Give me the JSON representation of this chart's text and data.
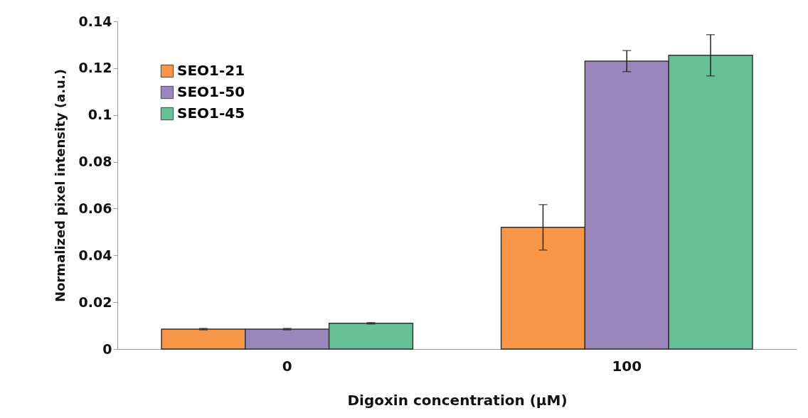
{
  "chart_data": {
    "type": "bar",
    "xlabel": "Digoxin concentration (μM)",
    "ylabel": "Normalized pixel intensity (a.u.)",
    "categories": [
      "0",
      "100"
    ],
    "ylim": [
      0,
      0.14
    ],
    "yticks": [
      0,
      0.02,
      0.04,
      0.06,
      0.08,
      0.1,
      0.12,
      0.14
    ],
    "grid": false,
    "legend": "top left",
    "series": [
      {
        "name": "SEO1-21",
        "color": "#f79646",
        "values": [
          0.0085,
          0.052
        ],
        "errors": [
          0.0003,
          0.0097
        ]
      },
      {
        "name": "SEO1-50",
        "color": "#9b85bd",
        "values": [
          0.0085,
          0.123
        ],
        "errors": [
          0.0003,
          0.0045
        ]
      },
      {
        "name": "SEO1-45",
        "color": "#66c194",
        "values": [
          0.011,
          0.1255
        ],
        "errors": [
          0.0003,
          0.0088
        ]
      }
    ]
  }
}
